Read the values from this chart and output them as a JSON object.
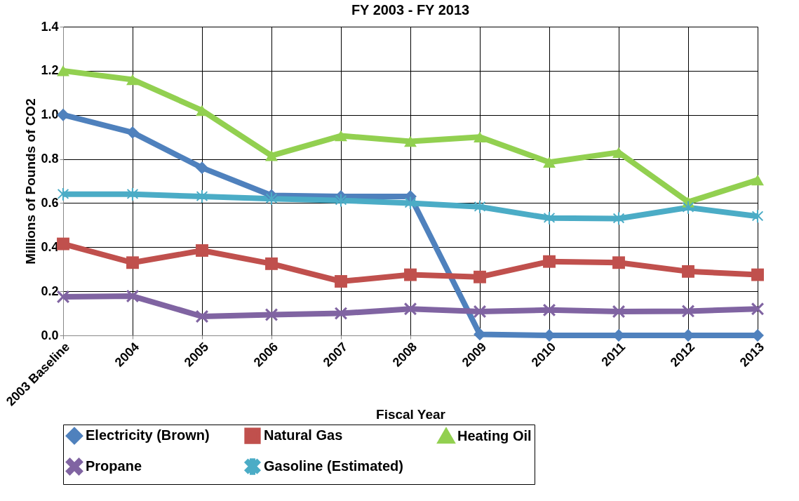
{
  "chart_data": {
    "type": "line",
    "title": "FY 2003 - FY 2013",
    "xlabel": "Fiscal Year",
    "ylabel": "Millions of Pounds of CO2",
    "categories": [
      "2003 Baseline",
      "2004",
      "2005",
      "2006",
      "2007",
      "2008",
      "2009",
      "2010",
      "2011",
      "2012",
      "2013"
    ],
    "series": [
      {
        "name": "Electricity (Brown)",
        "color": "#4f81bd",
        "marker": "diamond",
        "values": [
          1.0,
          0.92,
          0.76,
          0.635,
          0.63,
          0.63,
          0.005,
          0.0,
          0.0,
          0.0,
          0.0
        ]
      },
      {
        "name": "Natural Gas",
        "color": "#c0504d",
        "marker": "square",
        "values": [
          0.415,
          0.33,
          0.385,
          0.325,
          0.245,
          0.275,
          0.265,
          0.335,
          0.33,
          0.29,
          0.275
        ]
      },
      {
        "name": "Heating Oil",
        "color": "#92d050",
        "marker": "triangle",
        "values": [
          1.2,
          1.16,
          1.02,
          0.815,
          0.905,
          0.88,
          0.9,
          0.785,
          0.83,
          0.605,
          0.705
        ]
      },
      {
        "name": "Propane",
        "color": "#8064a2",
        "marker": "cross",
        "values": [
          0.175,
          0.178,
          0.086,
          0.094,
          0.1,
          0.12,
          0.108,
          0.115,
          0.108,
          0.11,
          0.12
        ]
      },
      {
        "name": "Gasoline (Estimated)",
        "color": "#4bacc6",
        "marker": "star",
        "values": [
          0.64,
          0.64,
          0.63,
          0.62,
          0.612,
          0.6,
          0.583,
          0.532,
          0.53,
          0.58,
          0.54
        ]
      }
    ],
    "ylim": [
      0,
      1.4
    ],
    "yticks": [
      {
        "value": 0,
        "label": "0.0"
      },
      0.2,
      0.4,
      0.6,
      0.8,
      {
        "value": 1,
        "label": "1.0"
      },
      1.2,
      1.4
    ],
    "grid": true,
    "legend": "bottom",
    "line_style": "solid"
  }
}
